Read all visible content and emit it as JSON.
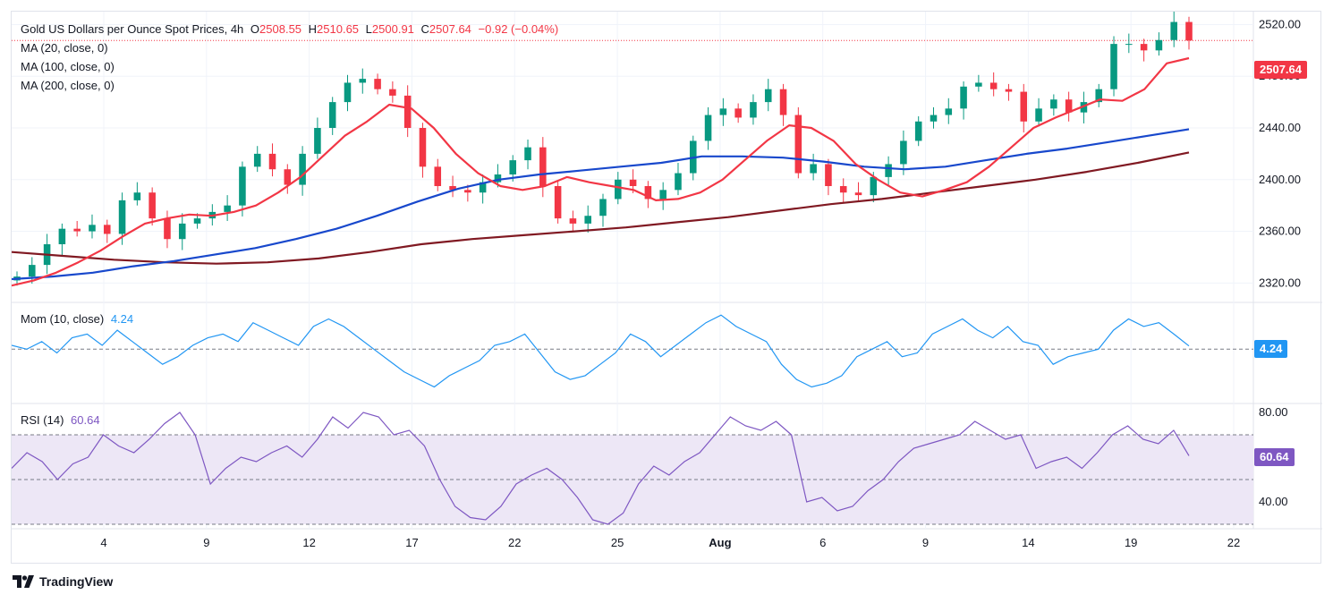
{
  "header": {
    "symbol": "Gold US Dollars per Ounce Spot Prices, 4h",
    "open_label": "O",
    "open": "2508.55",
    "high_label": "H",
    "high": "2510.65",
    "low_label": "L",
    "low": "2500.91",
    "close_label": "C",
    "close": "2507.64",
    "change": "−0.92 (−0.04%)"
  },
  "indicators": {
    "ma20": "MA (20, close, 0)",
    "ma100": "MA (100, close, 0)",
    "ma200": "MA (200, close, 0)",
    "mom_label": "Mom (10, close)",
    "mom_value": "4.24",
    "rsi_label": "RSI (14)",
    "rsi_value": "60.64"
  },
  "price_tag": "2507.64",
  "footer": {
    "brand": "TradingView"
  },
  "colors": {
    "candle_up": "#089981",
    "candle_down": "#f23645",
    "ma20": "#f23645",
    "ma100": "#1848cc",
    "ma200": "#801922",
    "momentum": "#2196f3",
    "rsi": "#7e57c2",
    "rsi_band": "#ede7f6",
    "grid": "#f0f3fa"
  },
  "chart_data": {
    "type": "candlestick",
    "title": "Gold US Dollars per Ounce Spot Prices, 4h",
    "x_tick_labels": [
      "4",
      "9",
      "12",
      "17",
      "22",
      "25",
      "Aug",
      "6",
      "9",
      "14",
      "19",
      "22"
    ],
    "price_axis": {
      "ticks": [
        2320,
        2360,
        2400,
        2440,
        2480,
        2520
      ],
      "range": [
        2305,
        2530
      ]
    },
    "last_price": 2507.64,
    "close_series": [
      2325,
      2334,
      2350,
      2362,
      2360,
      2365,
      2358,
      2384,
      2390,
      2370,
      2354,
      2366,
      2370,
      2375,
      2380,
      2410,
      2420,
      2408,
      2396,
      2420,
      2440,
      2460,
      2475,
      2478,
      2470,
      2465,
      2440,
      2410,
      2395,
      2392,
      2390,
      2398,
      2404,
      2415,
      2425,
      2395,
      2370,
      2366,
      2372,
      2385,
      2400,
      2395,
      2385,
      2392,
      2405,
      2430,
      2450,
      2455,
      2448,
      2460,
      2470,
      2450,
      2405,
      2412,
      2395,
      2390,
      2388,
      2402,
      2412,
      2430,
      2445,
      2450,
      2455,
      2472,
      2475,
      2470,
      2468,
      2445,
      2455,
      2462,
      2452,
      2460,
      2470,
      2505,
      2505,
      2500,
      2508,
      2522,
      2507.64
    ],
    "ma20_series": [
      2318,
      2322,
      2328,
      2336,
      2345,
      2356,
      2366,
      2370,
      2373,
      2372,
      2375,
      2380,
      2390,
      2402,
      2418,
      2434,
      2445,
      2458,
      2455,
      2440,
      2420,
      2405,
      2395,
      2392,
      2395,
      2402,
      2398,
      2395,
      2392,
      2384,
      2385,
      2390,
      2400,
      2415,
      2430,
      2442,
      2440,
      2430,
      2412,
      2400,
      2390,
      2387,
      2392,
      2398,
      2410,
      2425,
      2440,
      2448,
      2455,
      2462,
      2461,
      2470,
      2490,
      2494
    ],
    "ma100_series": [
      2323,
      2325,
      2328,
      2333,
      2337,
      2342,
      2347,
      2354,
      2362,
      2372,
      2383,
      2393,
      2400,
      2404,
      2407,
      2410,
      2413,
      2418,
      2418,
      2417,
      2414,
      2410,
      2408,
      2410,
      2415,
      2420,
      2424,
      2429,
      2434,
      2439
    ],
    "ma200_series": [
      2344,
      2341,
      2338,
      2336,
      2335,
      2336,
      2339,
      2344,
      2350,
      2354,
      2357,
      2360,
      2363,
      2367,
      2371,
      2376,
      2381,
      2385,
      2390,
      2395,
      2400,
      2406,
      2413,
      2421
    ],
    "momentum": {
      "label": "Mom (10, close)",
      "last": 4.24,
      "zero_line": 0,
      "series": [
        5,
        0,
        10,
        -5,
        15,
        20,
        5,
        25,
        10,
        -5,
        -20,
        -10,
        5,
        15,
        20,
        10,
        35,
        25,
        15,
        5,
        30,
        40,
        30,
        15,
        0,
        -15,
        -30,
        -40,
        -50,
        -35,
        -25,
        -15,
        5,
        10,
        20,
        -5,
        -30,
        -40,
        -35,
        -20,
        -5,
        20,
        10,
        -10,
        5,
        20,
        35,
        45,
        30,
        20,
        10,
        -20,
        -40,
        -50,
        -45,
        -35,
        -10,
        0,
        10,
        -10,
        -5,
        20,
        30,
        40,
        25,
        15,
        30,
        10,
        5,
        -20,
        -10,
        -5,
        0,
        25,
        40,
        30,
        35,
        20,
        4.24
      ]
    },
    "rsi": {
      "label": "RSI (14)",
      "last": 60.64,
      "levels": [
        30,
        50,
        70
      ],
      "ticks": [
        40,
        80
      ],
      "range": [
        28,
        84
      ],
      "series": [
        55,
        62,
        58,
        50,
        57,
        60,
        70,
        65,
        62,
        68,
        75,
        80,
        70,
        48,
        55,
        60,
        58,
        62,
        65,
        60,
        68,
        78,
        73,
        80,
        78,
        70,
        72,
        65,
        50,
        38,
        33,
        32,
        38,
        48,
        52,
        55,
        50,
        42,
        32,
        30,
        35,
        48,
        56,
        52,
        58,
        62,
        70,
        78,
        74,
        72,
        76,
        70,
        40,
        42,
        36,
        38,
        45,
        50,
        58,
        64,
        66,
        68,
        70,
        76,
        72,
        68,
        70,
        55,
        58,
        60,
        55,
        62,
        70,
        74,
        68,
        66,
        72,
        60.64
      ]
    }
  }
}
